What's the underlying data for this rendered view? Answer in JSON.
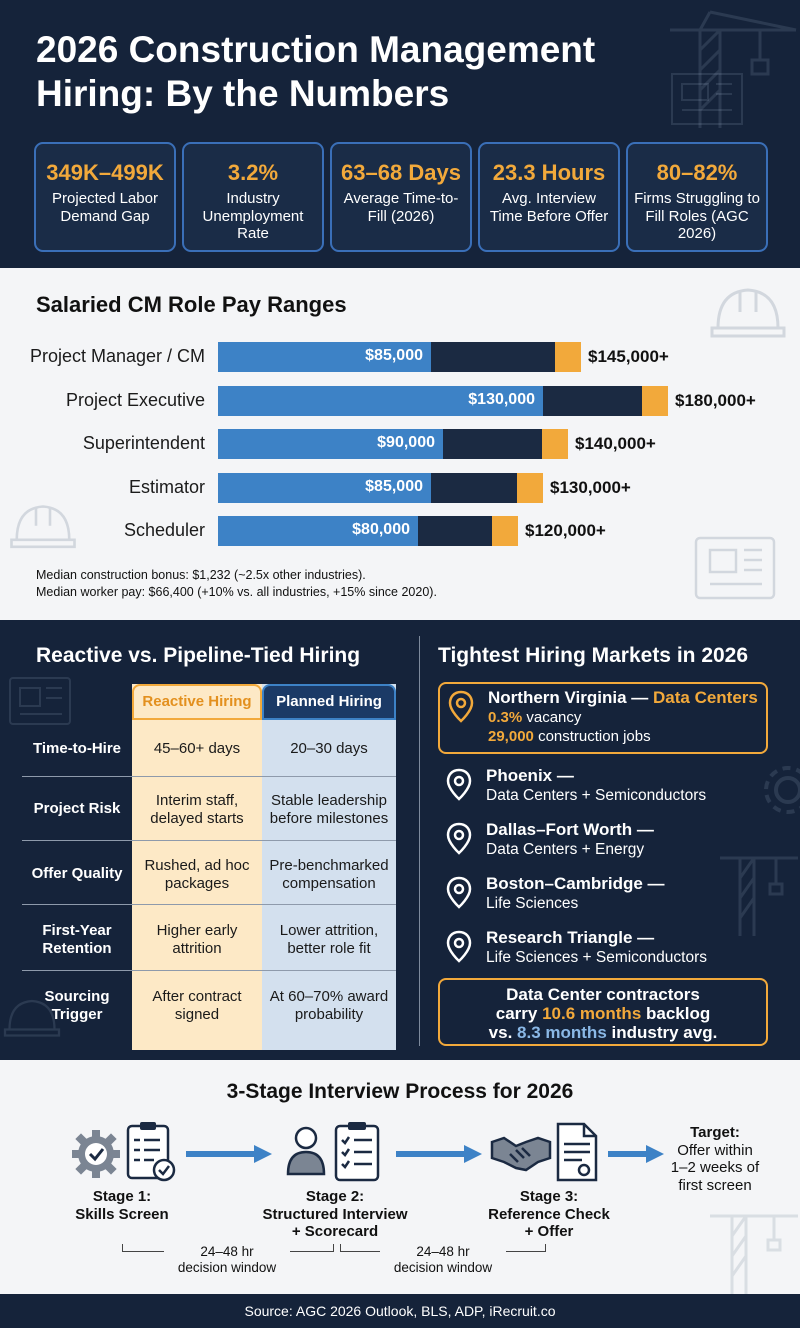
{
  "header": {
    "title": "2026 Construction Management Hiring: By the Numbers"
  },
  "stats": [
    {
      "value": "349K–499K",
      "label": "Projected Labor Demand Gap"
    },
    {
      "value": "3.2%",
      "label": "Industry Unemployment Rate"
    },
    {
      "value": "63–68 Days",
      "label": "Average Time-to-Fill (2026)"
    },
    {
      "value": "23.3 Hours",
      "label": "Avg. Interview Time Before Offer"
    },
    {
      "value": "80–82%",
      "label": "Firms Struggling to Fill Roles (AGC 2026)"
    }
  ],
  "pay": {
    "title": "Salaried CM Role Pay Ranges",
    "notes": [
      "Median construction bonus: $1,232 (~2.5x other industries).",
      "Median worker pay: $66,400 (+10% vs. all industries, +15% since 2020)."
    ]
  },
  "chart_data": {
    "type": "bar",
    "title": "Salaried CM Role Pay Ranges",
    "categories": [
      "Project Manager / CM",
      "Project Executive",
      "Superintendent",
      "Estimator",
      "Scheduler"
    ],
    "series": [
      {
        "values": [
          85000,
          130000,
          90000,
          85000,
          80000
        ]
      },
      {
        "values": [
          145000,
          180000,
          140000,
          130000,
          120000
        ]
      }
    ],
    "labels_low": [
      "$85,000",
      "$130,000",
      "$90,000",
      "$85,000",
      "$80,000"
    ],
    "labels_high": [
      "$145,000+",
      "$180,000+",
      "$140,000+",
      "$130,000+",
      "$120,000+"
    ],
    "colors": {
      "low": "#3d82c6",
      "range": "#1b2a42",
      "cap": "#f2a93b"
    }
  },
  "comparison": {
    "title": "Reactive vs. Pipeline-Tied Hiring",
    "col_reactive": "Reactive Hiring",
    "col_planned": "Planned Hiring",
    "rows": [
      {
        "label": "Time-to-Hire",
        "reactive": "45–60+ days",
        "planned": "20–30 days"
      },
      {
        "label": "Project Risk",
        "reactive": "Interim staff, delayed starts",
        "planned": "Stable leadership before milestones"
      },
      {
        "label": "Offer Quality",
        "reactive": "Rushed, ad hoc packages",
        "planned": "Pre-benchmarked compensation"
      },
      {
        "label": "First-Year Retention",
        "reactive": "Higher early attrition",
        "planned": "Lower attrition, better role fit"
      },
      {
        "label": "Sourcing Trigger",
        "reactive": "After contract signed",
        "planned": "At 60–70% award probability"
      }
    ]
  },
  "markets": {
    "title": "Tightest Hiring Markets in 2026",
    "featured": {
      "name": "Northern Virginia —",
      "sector": "Data Centers",
      "vacancy_value": "0.3%",
      "vacancy_text": "vacancy",
      "jobs_value": "29,000",
      "jobs_text": "construction jobs"
    },
    "items": [
      {
        "name": "Phoenix —",
        "sub": "Data Centers + Semiconductors"
      },
      {
        "name": "Dallas–Fort Worth —",
        "sub": "Data Centers + Energy"
      },
      {
        "name": "Boston–Cambridge —",
        "sub": "Life Sciences"
      },
      {
        "name": "Research Triangle —",
        "sub": "Life Sciences + Semiconductors"
      }
    ],
    "backlog": {
      "line1": "Data Center contractors",
      "line2_pre": "carry",
      "line2_value": "10.6 months",
      "line2_post": "backlog",
      "line3_pre": "vs.",
      "line3_value": "8.3 months",
      "line3_post": "industry avg."
    }
  },
  "process": {
    "title": "3-Stage Interview Process for 2026",
    "stage1_a": "Stage 1:",
    "stage1_b": "Skills Screen",
    "stage2_a": "Stage 2:",
    "stage2_b": "Structured Interview",
    "stage2_c": "+ Scorecard",
    "stage3_a": "Stage 3:",
    "stage3_b": "Reference Check",
    "stage3_c": "+ Offer",
    "target_a": "Target:",
    "target_b": "Offer within",
    "target_c": "1–2 weeks of",
    "target_d": "first screen",
    "window_a": "24–48 hr",
    "window_b": "decision window"
  },
  "footer": {
    "source": "Source: AGC 2026 Outlook, BLS, ADP, iRecruit.co"
  }
}
